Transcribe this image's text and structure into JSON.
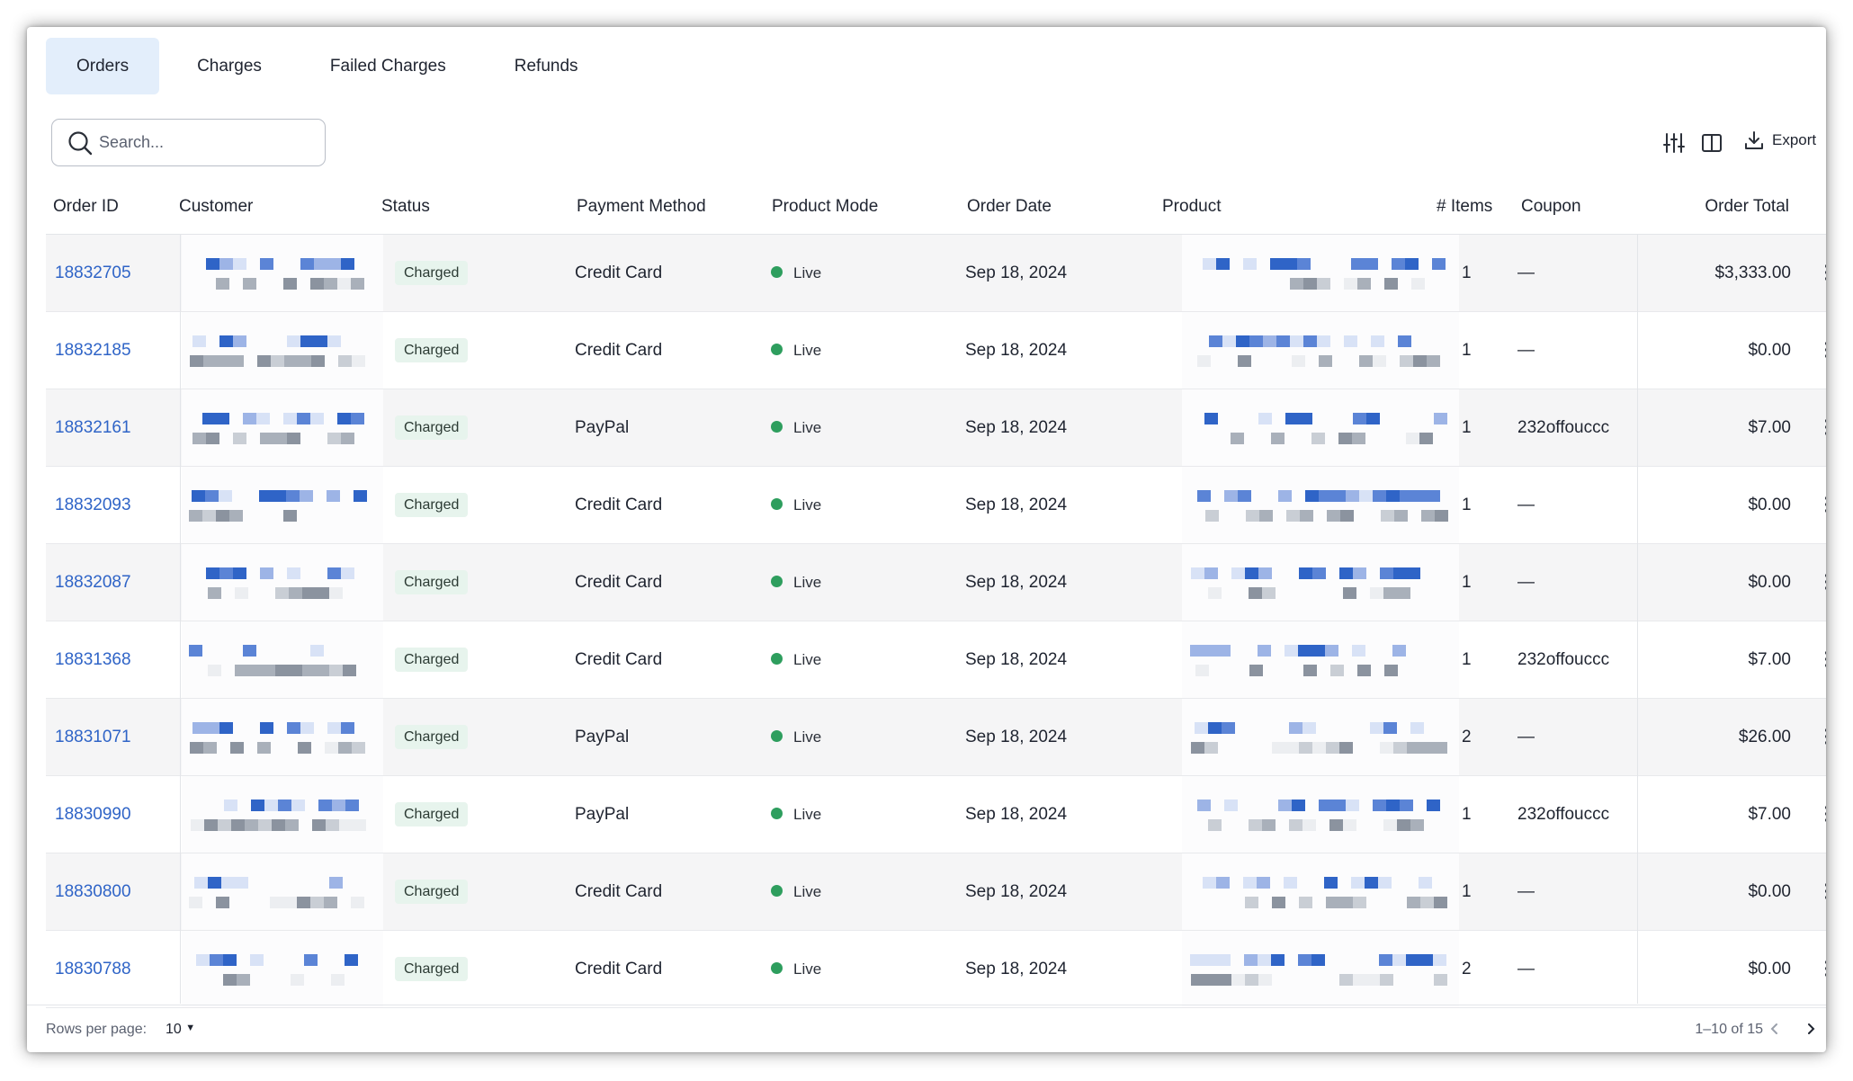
{
  "tabs": [
    {
      "label": "Orders",
      "active": true
    },
    {
      "label": "Charges",
      "active": false
    },
    {
      "label": "Failed Charges",
      "active": false
    },
    {
      "label": "Refunds",
      "active": false
    }
  ],
  "search": {
    "placeholder": "Search..."
  },
  "toolbar": {
    "export_label": "Export",
    "icons": [
      "sliders-icon",
      "columns-icon",
      "download-icon"
    ]
  },
  "table": {
    "columns": [
      "Order ID",
      "Customer",
      "Status",
      "Payment Method",
      "Product Mode",
      "Order Date",
      "Product",
      "# Items",
      "Coupon",
      "Order Total"
    ],
    "rows": [
      {
        "order_id": "18832705",
        "status": "Charged",
        "payment": "Credit Card",
        "mode": "Live",
        "date": "Sep 18, 2024",
        "items": "1",
        "coupon": "—",
        "total": "$3,333.00"
      },
      {
        "order_id": "18832185",
        "status": "Charged",
        "payment": "Credit Card",
        "mode": "Live",
        "date": "Sep 18, 2024",
        "items": "1",
        "coupon": "—",
        "total": "$0.00"
      },
      {
        "order_id": "18832161",
        "status": "Charged",
        "payment": "PayPal",
        "mode": "Live",
        "date": "Sep 18, 2024",
        "items": "1",
        "coupon": "232offouccc",
        "total": "$7.00"
      },
      {
        "order_id": "18832093",
        "status": "Charged",
        "payment": "Credit Card",
        "mode": "Live",
        "date": "Sep 18, 2024",
        "items": "1",
        "coupon": "—",
        "total": "$0.00"
      },
      {
        "order_id": "18832087",
        "status": "Charged",
        "payment": "Credit Card",
        "mode": "Live",
        "date": "Sep 18, 2024",
        "items": "1",
        "coupon": "—",
        "total": "$0.00"
      },
      {
        "order_id": "18831368",
        "status": "Charged",
        "payment": "Credit Card",
        "mode": "Live",
        "date": "Sep 18, 2024",
        "items": "1",
        "coupon": "232offouccc",
        "total": "$7.00"
      },
      {
        "order_id": "18831071",
        "status": "Charged",
        "payment": "PayPal",
        "mode": "Live",
        "date": "Sep 18, 2024",
        "items": "2",
        "coupon": "—",
        "total": "$26.00"
      },
      {
        "order_id": "18830990",
        "status": "Charged",
        "payment": "PayPal",
        "mode": "Live",
        "date": "Sep 18, 2024",
        "items": "1",
        "coupon": "232offouccc",
        "total": "$7.00"
      },
      {
        "order_id": "18830800",
        "status": "Charged",
        "payment": "Credit Card",
        "mode": "Live",
        "date": "Sep 18, 2024",
        "items": "1",
        "coupon": "—",
        "total": "$0.00"
      },
      {
        "order_id": "18830788",
        "status": "Charged",
        "payment": "Credit Card",
        "mode": "Live",
        "date": "Sep 18, 2024",
        "items": "2",
        "coupon": "—",
        "total": "$0.00"
      }
    ]
  },
  "pagination": {
    "rows_per_page_label": "Rows per page:",
    "rows_per_page": "10",
    "range": "1–10 of 15"
  },
  "colors": {
    "accent": "#2f64c7",
    "tab_active": "#e3eefb",
    "badge_bg": "#e7f4ed",
    "live_dot": "#2e9e5e"
  }
}
